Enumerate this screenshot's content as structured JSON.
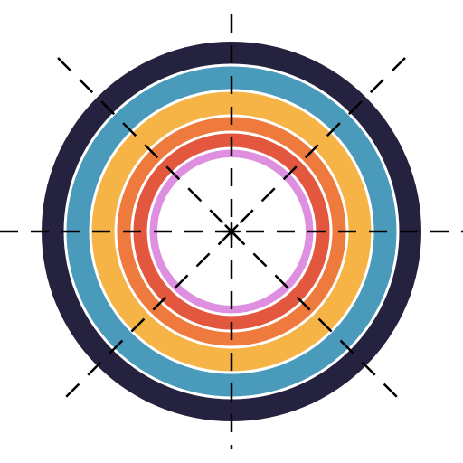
{
  "icon": "concentric-rings-target-icon",
  "colors": {
    "background": "#ffffff",
    "separator": "#ffffff",
    "crosshair": "#000000",
    "rings": [
      "#24223f",
      "#4a9bbb",
      "#f6b447",
      "#ef7a3d",
      "#e4573f",
      "#de8fe0"
    ],
    "center": "#ffffff"
  },
  "ring_names": [
    "outer-navy-ring",
    "teal-ring",
    "yellow-ring",
    "orange-ring",
    "red-ring",
    "pink-ring"
  ]
}
